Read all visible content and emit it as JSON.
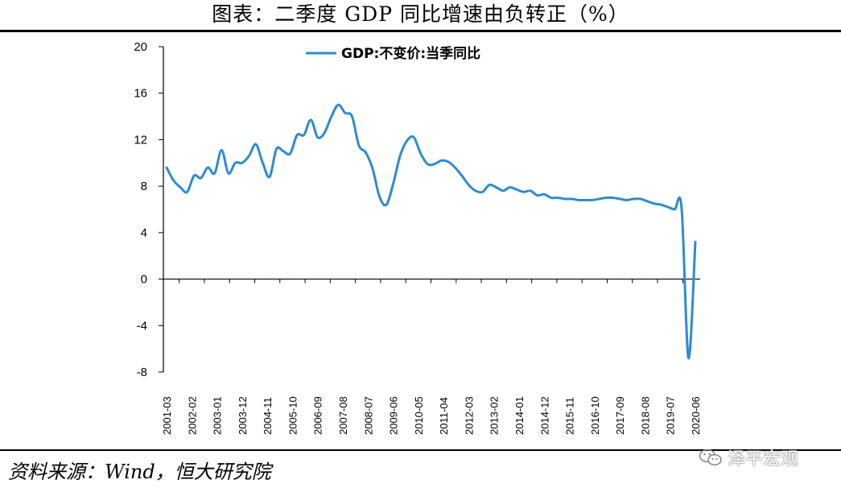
{
  "title": "图表：二季度 GDP 同比增速由负转正（%）",
  "source": "资料来源：Wind，恒大研究院",
  "watermark": "泽平宏观",
  "colors": {
    "line": "#2E8BD0",
    "axis": "#000000"
  },
  "icons": {
    "watermark": "wechat-icon"
  },
  "chart_data": {
    "type": "line",
    "legend_position": "top-center",
    "grid": false,
    "ylim": [
      -8,
      20
    ],
    "yticks": [
      -8,
      -4,
      0,
      4,
      8,
      12,
      16,
      20
    ],
    "xticks": [
      "2001-03",
      "2002-02",
      "2003-01",
      "2003-12",
      "2004-11",
      "2005-10",
      "2006-09",
      "2007-08",
      "2008-07",
      "2009-06",
      "2010-05",
      "2011-04",
      "2012-03",
      "2013-02",
      "2014-01",
      "2014-12",
      "2015-11",
      "2016-10",
      "2017-09",
      "2018-08",
      "2019-07",
      "2020-06"
    ],
    "series": [
      {
        "name": "GDP:不变价:当季同比",
        "x": [
          "2001-03",
          "2001-06",
          "2001-09",
          "2001-12",
          "2002-03",
          "2002-06",
          "2002-09",
          "2002-12",
          "2003-03",
          "2003-06",
          "2003-09",
          "2003-12",
          "2004-03",
          "2004-06",
          "2004-09",
          "2004-12",
          "2005-03",
          "2005-06",
          "2005-09",
          "2005-12",
          "2006-03",
          "2006-06",
          "2006-09",
          "2006-12",
          "2007-03",
          "2007-06",
          "2007-09",
          "2007-12",
          "2008-03",
          "2008-06",
          "2008-09",
          "2008-12",
          "2009-03",
          "2009-06",
          "2009-09",
          "2009-12",
          "2010-03",
          "2010-06",
          "2010-09",
          "2010-12",
          "2011-03",
          "2011-06",
          "2011-09",
          "2011-12",
          "2012-03",
          "2012-06",
          "2012-09",
          "2012-12",
          "2013-03",
          "2013-06",
          "2013-09",
          "2013-12",
          "2014-03",
          "2014-06",
          "2014-09",
          "2014-12",
          "2015-03",
          "2015-06",
          "2015-09",
          "2015-12",
          "2016-03",
          "2016-06",
          "2016-09",
          "2016-12",
          "2017-03",
          "2017-06",
          "2017-09",
          "2017-12",
          "2018-03",
          "2018-06",
          "2018-09",
          "2018-12",
          "2019-03",
          "2019-06",
          "2019-09",
          "2019-12",
          "2020-03",
          "2020-06"
        ],
        "values": [
          9.6,
          8.5,
          7.9,
          7.5,
          8.9,
          8.7,
          9.6,
          9.1,
          11.1,
          9.1,
          10.0,
          10.0,
          10.6,
          11.6,
          10.0,
          8.8,
          11.2,
          11.0,
          10.8,
          12.4,
          12.4,
          13.7,
          12.2,
          12.6,
          14.0,
          15.0,
          14.3,
          14.0,
          11.5,
          10.9,
          9.5,
          7.1,
          6.4,
          8.2,
          10.6,
          11.9,
          12.2,
          10.8,
          9.9,
          9.9,
          10.2,
          10.1,
          9.6,
          8.9,
          8.1,
          7.6,
          7.5,
          8.1,
          7.9,
          7.6,
          7.9,
          7.7,
          7.5,
          7.6,
          7.2,
          7.3,
          7.0,
          7.0,
          6.9,
          6.9,
          6.8,
          6.8,
          6.8,
          6.9,
          7.0,
          7.0,
          6.9,
          6.8,
          6.9,
          6.9,
          6.7,
          6.5,
          6.4,
          6.2,
          6.0,
          6.1,
          -6.8,
          3.2
        ]
      }
    ]
  }
}
